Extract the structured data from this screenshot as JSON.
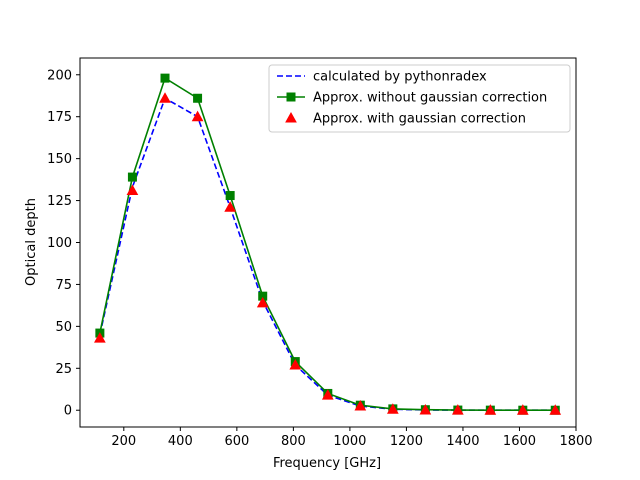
{
  "chart_data": {
    "type": "line",
    "xlabel": "Frequency [GHz]",
    "ylabel": "Optical depth",
    "xlim": [
      45,
      1800
    ],
    "ylim": [
      -10,
      210
    ],
    "xticks": [
      200,
      400,
      600,
      800,
      1000,
      1200,
      1400,
      1600,
      1800
    ],
    "yticks": [
      0,
      25,
      50,
      75,
      100,
      125,
      150,
      175,
      200
    ],
    "legend_position": "top-right",
    "grid": false,
    "x": [
      115.3,
      230.5,
      345.8,
      461.0,
      576.3,
      691.5,
      806.7,
      921.8,
      1036.9,
      1151.9,
      1267.0,
      1381.9,
      1496.9,
      1611.8,
      1726.6
    ],
    "series": [
      {
        "name": "calculated by pythonradex",
        "style": "dashed",
        "marker": "none",
        "color": "#0000ff",
        "values": [
          45,
          133,
          186,
          175,
          121,
          65,
          27,
          9,
          2.5,
          0.6,
          0.15,
          0.05,
          0.02,
          0.01,
          0.0
        ]
      },
      {
        "name": "Approx. without gaussian correction",
        "style": "solid",
        "marker": "square",
        "color": "#008000",
        "values": [
          46,
          139,
          198,
          186,
          128,
          68,
          29,
          10,
          3,
          0.8,
          0.3,
          0.1,
          0.05,
          0.02,
          0.0
        ]
      },
      {
        "name": "Approx. with gaussian correction",
        "style": "none",
        "marker": "triangle",
        "color": "#ff0000",
        "values": [
          43,
          131,
          186,
          175,
          121,
          64,
          27,
          9,
          2.5,
          0.6,
          0.15,
          0.05,
          0.02,
          0.01,
          0.0
        ]
      }
    ]
  }
}
